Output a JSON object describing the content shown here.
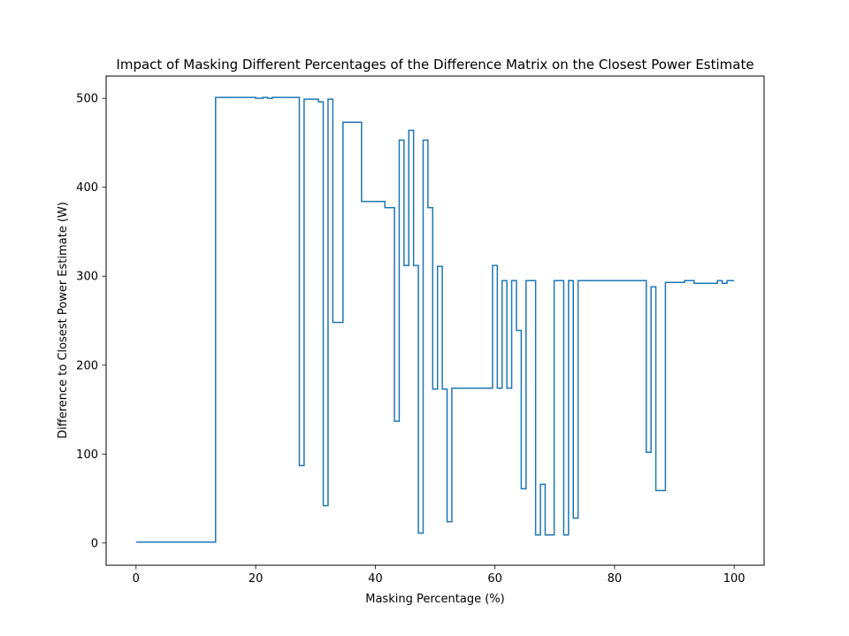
{
  "chart_data": {
    "type": "line",
    "title": "Impact of Masking Different Percentages of the Difference Matrix on the Closest Power Estimate",
    "xlabel": "Masking Percentage (%)",
    "ylabel": "Difference to Closest Power Estimate (W)",
    "xlim": [
      -5,
      105
    ],
    "ylim": [
      -25,
      525
    ],
    "xticks": [
      0,
      20,
      40,
      60,
      80,
      100
    ],
    "yticks": [
      0,
      100,
      200,
      300,
      400,
      500
    ],
    "grid": false,
    "drawstyle": "steps",
    "series": [
      {
        "color": "#1f77b4",
        "points": [
          [
            0,
            1
          ],
          [
            13.3,
            1
          ],
          [
            13.3,
            501
          ],
          [
            20.0,
            501
          ],
          [
            20.0,
            500
          ],
          [
            21.2,
            500
          ],
          [
            21.2,
            501
          ],
          [
            22.0,
            501
          ],
          [
            22.0,
            500
          ],
          [
            22.8,
            500
          ],
          [
            22.8,
            501
          ],
          [
            27.3,
            501
          ],
          [
            27.3,
            87
          ],
          [
            28.1,
            87
          ],
          [
            28.1,
            499
          ],
          [
            30.5,
            499
          ],
          [
            30.5,
            496
          ],
          [
            31.3,
            496
          ],
          [
            31.3,
            42
          ],
          [
            32.1,
            42
          ],
          [
            32.1,
            499
          ],
          [
            32.9,
            499
          ],
          [
            32.9,
            248
          ],
          [
            34.6,
            248
          ],
          [
            34.6,
            473
          ],
          [
            37.7,
            473
          ],
          [
            37.7,
            384
          ],
          [
            41.6,
            384
          ],
          [
            41.6,
            377
          ],
          [
            43.2,
            377
          ],
          [
            43.2,
            137
          ],
          [
            44.0,
            137
          ],
          [
            44.0,
            453
          ],
          [
            44.8,
            453
          ],
          [
            44.8,
            312
          ],
          [
            45.6,
            312
          ],
          [
            45.6,
            464
          ],
          [
            46.4,
            464
          ],
          [
            46.4,
            312
          ],
          [
            47.2,
            312
          ],
          [
            47.2,
            11
          ],
          [
            48.0,
            11
          ],
          [
            48.0,
            453
          ],
          [
            48.8,
            453
          ],
          [
            48.8,
            377
          ],
          [
            49.6,
            377
          ],
          [
            49.6,
            173
          ],
          [
            50.4,
            173
          ],
          [
            50.4,
            311
          ],
          [
            51.2,
            311
          ],
          [
            51.2,
            173
          ],
          [
            52.0,
            173
          ],
          [
            52.0,
            24
          ],
          [
            52.8,
            24
          ],
          [
            52.8,
            174
          ],
          [
            59.6,
            174
          ],
          [
            59.6,
            312
          ],
          [
            60.4,
            312
          ],
          [
            60.4,
            174
          ],
          [
            61.2,
            174
          ],
          [
            61.2,
            295
          ],
          [
            62.0,
            295
          ],
          [
            62.0,
            174
          ],
          [
            62.8,
            174
          ],
          [
            62.8,
            295
          ],
          [
            63.6,
            295
          ],
          [
            63.6,
            239
          ],
          [
            64.4,
            239
          ],
          [
            64.4,
            61
          ],
          [
            65.2,
            61
          ],
          [
            65.2,
            295
          ],
          [
            66.8,
            295
          ],
          [
            66.8,
            9
          ],
          [
            67.6,
            9
          ],
          [
            67.6,
            66
          ],
          [
            68.4,
            66
          ],
          [
            68.4,
            9
          ],
          [
            69.9,
            9
          ],
          [
            69.9,
            295
          ],
          [
            71.5,
            295
          ],
          [
            71.5,
            9
          ],
          [
            72.3,
            9
          ],
          [
            72.3,
            295
          ],
          [
            73.1,
            295
          ],
          [
            73.1,
            28
          ],
          [
            73.9,
            28
          ],
          [
            73.9,
            295
          ],
          [
            85.3,
            295
          ],
          [
            85.3,
            102
          ],
          [
            86.1,
            102
          ],
          [
            86.1,
            288
          ],
          [
            86.9,
            288
          ],
          [
            86.9,
            59
          ],
          [
            88.5,
            59
          ],
          [
            88.5,
            293
          ],
          [
            91.7,
            293
          ],
          [
            91.7,
            295
          ],
          [
            93.3,
            295
          ],
          [
            93.3,
            292
          ],
          [
            97.2,
            292
          ],
          [
            97.2,
            295
          ],
          [
            98.0,
            295
          ],
          [
            98.0,
            292
          ],
          [
            98.8,
            292
          ],
          [
            98.8,
            295
          ],
          [
            100,
            295
          ]
        ]
      }
    ]
  }
}
